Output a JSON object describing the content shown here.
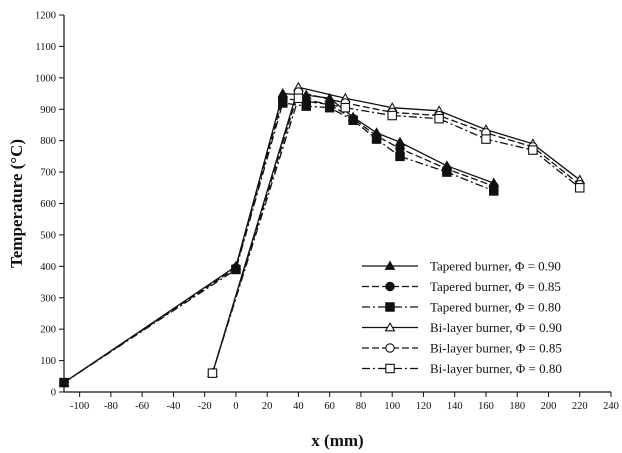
{
  "chart_data": {
    "type": "line",
    "title": "",
    "xlabel": "x (mm)",
    "ylabel": "Temperature (°C)",
    "xlim": [
      -110,
      240
    ],
    "ylim": [
      0,
      1200
    ],
    "x_ticks": [
      -100,
      -80,
      -60,
      -40,
      -20,
      0,
      20,
      40,
      60,
      80,
      100,
      120,
      140,
      160,
      180,
      200,
      220,
      240
    ],
    "y_ticks": [
      0,
      100,
      200,
      300,
      400,
      500,
      600,
      700,
      800,
      900,
      1000,
      1100,
      1200
    ],
    "grid": false,
    "legend_position": "bottom-right",
    "series": [
      {
        "name": "Tapered burner, Φ = 0.90",
        "marker": "triangle",
        "filled": true,
        "dash": "solid",
        "x": [
          -110,
          0,
          30,
          45,
          60,
          75,
          90,
          105,
          135,
          165
        ],
        "y": [
          30,
          400,
          950,
          945,
          935,
          875,
          825,
          795,
          720,
          665
        ]
      },
      {
        "name": "Tapered burner, Φ = 0.85",
        "marker": "circle",
        "filled": true,
        "dash": "dashed",
        "x": [
          -110,
          0,
          30,
          45,
          60,
          75,
          90,
          105,
          135,
          165
        ],
        "y": [
          30,
          395,
          935,
          925,
          915,
          870,
          815,
          775,
          710,
          655
        ]
      },
      {
        "name": "Tapered burner, Φ = 0.80",
        "marker": "square",
        "filled": true,
        "dash": "dashdot",
        "x": [
          -110,
          0,
          30,
          45,
          60,
          75,
          90,
          105,
          135,
          165
        ],
        "y": [
          30,
          390,
          920,
          910,
          905,
          865,
          805,
          750,
          700,
          640
        ]
      },
      {
        "name": "Bi-layer burner, Φ = 0.90",
        "marker": "triangle",
        "filled": false,
        "dash": "solid",
        "x": [
          -15,
          40,
          70,
          100,
          130,
          160,
          190,
          220
        ],
        "y": [
          60,
          970,
          935,
          905,
          895,
          835,
          790,
          675
        ]
      },
      {
        "name": "Bi-layer burner, Φ = 0.85",
        "marker": "circle",
        "filled": false,
        "dash": "dashed",
        "x": [
          -15,
          40,
          70,
          100,
          130,
          160,
          190,
          220
        ],
        "y": [
          60,
          955,
          920,
          890,
          880,
          825,
          780,
          660
        ]
      },
      {
        "name": "Bi-layer burner, Φ = 0.80",
        "marker": "square",
        "filled": false,
        "dash": "dashdot",
        "x": [
          -15,
          40,
          70,
          100,
          130,
          160,
          190,
          220
        ],
        "y": [
          60,
          935,
          905,
          880,
          870,
          805,
          770,
          650
        ]
      }
    ]
  }
}
